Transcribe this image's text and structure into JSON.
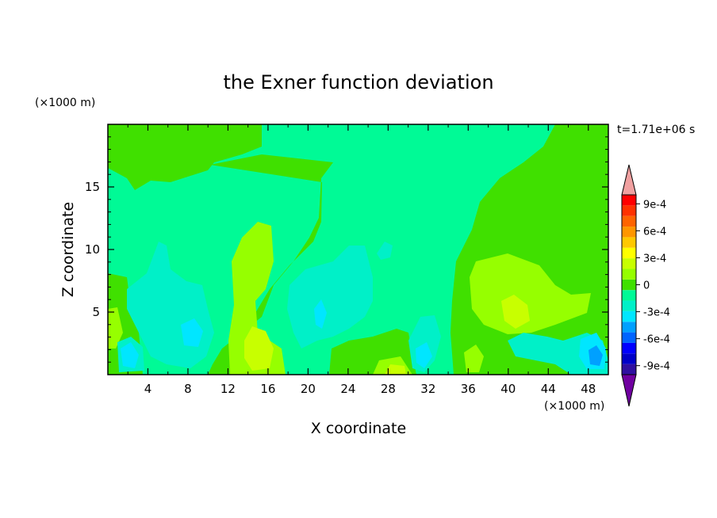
{
  "chart_data": {
    "type": "heatmap",
    "title": "the Exner function deviation",
    "xlabel": "X coordinate",
    "ylabel": "Z coordinate",
    "x_unit": "(×1000 m)",
    "y_unit": "(×1000 m)",
    "time_label": "t=1.71e+06 s",
    "xlim": [
      0,
      50
    ],
    "ylim": [
      0,
      20
    ],
    "xticks": [
      4,
      8,
      12,
      16,
      20,
      24,
      28,
      32,
      36,
      40,
      44,
      48
    ],
    "yticks": [
      5,
      10,
      15
    ],
    "colorbar": {
      "labels": [
        "9e-4",
        "6e-4",
        "3e-4",
        "0",
        "-3e-4",
        "-6e-4",
        "-9e-4"
      ],
      "label_values": [
        0.0009,
        0.0006,
        0.0003,
        0,
        -0.0003,
        -0.0006,
        -0.0009
      ],
      "colors": [
        "#7000a0",
        "#3010a0",
        "#0000c8",
        "#0000ff",
        "#0064ff",
        "#00a0ff",
        "#00e6ff",
        "#00f0c8",
        "#00fa96",
        "#40e000",
        "#96ff00",
        "#c8ff00",
        "#ffff00",
        "#ffc800",
        "#ff9600",
        "#ff6400",
        "#ff3200",
        "#ff0000",
        "#f0a0a0"
      ],
      "min": -0.001,
      "max": 0.001
    },
    "colors": {
      "background_field": "#00fa96",
      "green": "#40e000",
      "yellowgreen": "#96ff00",
      "yellow": "#c8ff00",
      "cyan": "#00f0c8",
      "lightblue": "#00e6ff",
      "blue": "#00a0ff"
    }
  }
}
